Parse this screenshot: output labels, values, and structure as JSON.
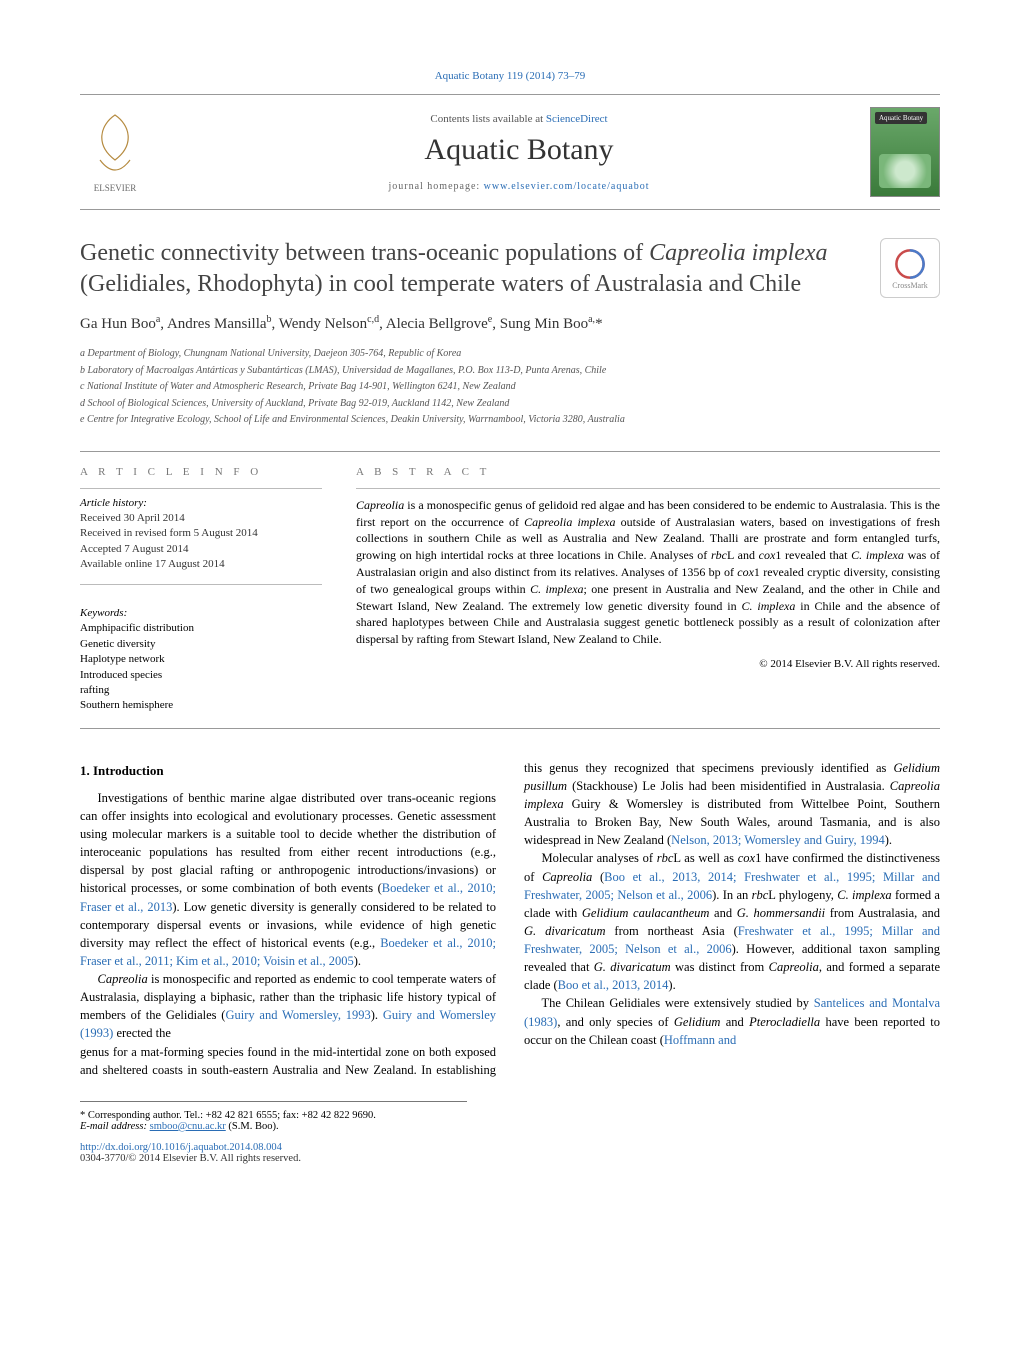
{
  "header": {
    "citation": "Aquatic Botany 119 (2014) 73–79",
    "contents_prefix": "Contents lists available at ",
    "contents_link": "ScienceDirect",
    "journal": "Aquatic Botany",
    "homepage_prefix": "journal homepage: ",
    "homepage_url": "www.elsevier.com/locate/aquabot",
    "cover_label": "Aquatic Botany"
  },
  "crossmark": "CrossMark",
  "title_html": "Genetic connectivity between trans-oceanic populations of <em>Capreolia implexa</em> (Gelidiales, Rhodophyta) in cool temperate waters of Australasia and Chile",
  "authors_html": "Ga Hun Boo<span class='sup'>a</span>, Andres Mansilla<span class='sup'>b</span>, Wendy Nelson<span class='sup'>c,d</span>, Alecia Bellgrove<span class='sup'>e</span>, Sung Min Boo<span class='sup'>a,</span>*",
  "affiliations": [
    "a Department of Biology, Chungnam National University, Daejeon 305-764, Republic of Korea",
    "b Laboratory of Macroalgas Antárticas y Subantárticas (LMAS), Universidad de Magallanes, P.O. Box 113-D, Punta Arenas, Chile",
    "c National Institute of Water and Atmospheric Research, Private Bag 14-901, Wellington 6241, New Zealand",
    "d School of Biological Sciences, University of Auckland, Private Bag 92-019, Auckland 1142, New Zealand",
    "e Centre for Integrative Ecology, School of Life and Environmental Sciences, Deakin University, Warrnambool, Victoria 3280, Australia"
  ],
  "article_info": {
    "head": "A R T I C L E   I N F O",
    "history_head": "Article history:",
    "history": [
      "Received 30 April 2014",
      "Received in revised form 5 August 2014",
      "Accepted 7 August 2014",
      "Available online 17 August 2014"
    ],
    "keywords_head": "Keywords:",
    "keywords": [
      "Amphipacific distribution",
      "Genetic diversity",
      "Haplotype network",
      "Introduced species",
      "rafting",
      "Southern hemisphere"
    ]
  },
  "abstract": {
    "head": "A B S T R A C T",
    "text_html": "<em>Capreolia</em> is a monospecific genus of gelidoid red algae and has been considered to be endemic to Australasia. This is the first report on the occurrence of <em>Capreolia implexa</em> outside of Australasian waters, based on investigations of fresh collections in southern Chile as well as Australia and New Zealand. Thalli are prostrate and form entangled turfs, growing on high intertidal rocks at three locations in Chile. Analyses of <em>rbc</em>L and <em>cox</em>1 revealed that <em>C. implexa</em> was of Australasian origin and also distinct from its relatives. Analyses of 1356 bp of <em>cox</em>1 revealed cryptic diversity, consisting of two genealogical groups within <em>C. implexa</em>; one present in Australia and New Zealand, and the other in Chile and Stewart Island, New Zealand. The extremely low genetic diversity found in <em>C. implexa</em> in Chile and the absence of shared haplotypes between Chile and Australasia suggest genetic bottleneck possibly as a result of colonization after dispersal by rafting from Stewart Island, New Zealand to Chile.",
    "copyright": "© 2014 Elsevier B.V. All rights reserved."
  },
  "body": {
    "section_head": "1.  Introduction",
    "paras": [
      "Investigations of benthic marine algae distributed over trans-oceanic regions can offer insights into ecological and evolutionary processes. Genetic assessment using molecular markers is a suitable tool to decide whether the distribution of interoceanic populations has resulted from either recent introductions (e.g., dispersal by post glacial rafting or anthropogenic introductions/invasions) or historical processes, or some combination of both events (<span class='cit'>Boedeker et al., 2010; Fraser et al., 2013</span>). Low genetic diversity is generally considered to be related to contemporary dispersal events or invasions, while evidence of high genetic diversity may reflect the effect of historical events (e.g., <span class='cit'>Boedeker et al., 2010; Fraser et al., 2011; Kim et al., 2010; Voisin et al., 2005</span>).",
      "<em>Capreolia</em> is monospecific and reported as endemic to cool temperate waters of Australasia, displaying a biphasic, rather than the triphasic life history typical of members of the Gelidiales (<span class='cit'>Guiry and Womersley, 1993</span>). <span class='cit'>Guiry and Womersley (1993)</span> erected the",
      "genus for a mat-forming species found in the mid-intertidal zone on both exposed and sheltered coasts in south-eastern Australia and New Zealand. In establishing this genus they recognized that specimens previously identified as <em>Gelidium pusillum</em> (Stackhouse) Le Jolis had been misidentified in Australasia. <em>Capreolia implexa</em> Guiry & Womersley is distributed from Wittelbee Point, Southern Australia to Broken Bay, New South Wales, around Tasmania, and is also widespread in New Zealand (<span class='cit'>Nelson, 2013; Womersley and Guiry, 1994</span>).",
      "Molecular analyses of <em>rbc</em>L as well as <em>cox</em>1 have confirmed the distinctiveness of <em>Capreolia</em> (<span class='cit'>Boo et al., 2013, 2014; Freshwater et al., 1995; Millar and Freshwater, 2005; Nelson et al., 2006</span>). In an <em>rbc</em>L phylogeny, <em>C. implexa</em> formed a clade with <em>Gelidium caulacantheum</em> and <em>G. hommersandii</em> from Australasia, and <em>G. divaricatum</em> from northeast Asia (<span class='cit'>Freshwater et al., 1995; Millar and Freshwater, 2005; Nelson et al., 2006</span>). However, additional taxon sampling revealed that <em>G. divaricatum</em> was distinct from <em>Capreolia</em>, and formed a separate clade (<span class='cit'>Boo et al., 2013, 2014</span>).",
      "The Chilean Gelidiales were extensively studied by <span class='cit'>Santelices and Montalva (1983)</span>, and only species of <em>Gelidium</em> and <em>Pterocladiella</em> have been reported to occur on the Chilean coast (<span class='cit'>Hoffmann and</span>"
    ]
  },
  "footnote": {
    "corr": "* Corresponding author. Tel.: +82 42 821 6555; fax: +82 42 822 9690.",
    "email_label": "E-mail address:",
    "email": "smboo@cnu.ac.kr",
    "email_who": "(S.M. Boo)."
  },
  "doi": {
    "url": "http://dx.doi.org/10.1016/j.aquabot.2014.08.004",
    "issn": "0304-3770/© 2014 Elsevier B.V. All rights reserved."
  }
}
